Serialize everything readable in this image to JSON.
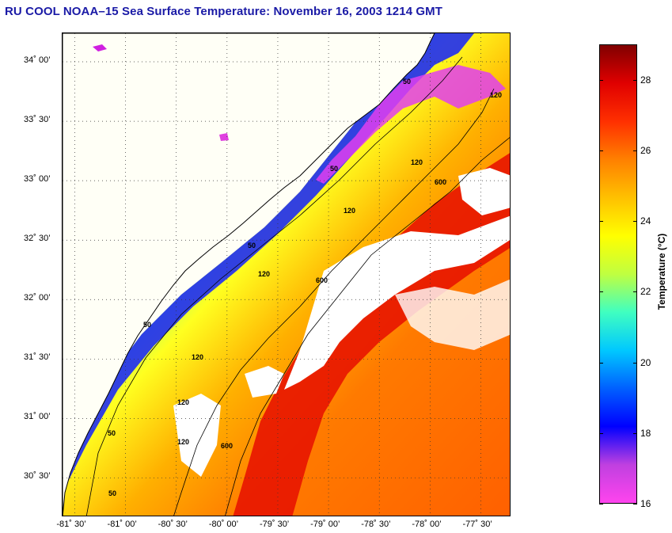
{
  "title": "RU COOL  NOAA–15  Sea Surface Temperature:  November 16, 2003 1214 GMT",
  "y_ticks": [
    {
      "label": "34˚ 00’",
      "lat": 34.0
    },
    {
      "label": "33˚ 30’",
      "lat": 33.5
    },
    {
      "label": "33˚ 00’",
      "lat": 33.0
    },
    {
      "label": "32˚ 30’",
      "lat": 32.5
    },
    {
      "label": "32˚ 00’",
      "lat": 32.0
    },
    {
      "label": "31˚ 30’",
      "lat": 31.5
    },
    {
      "label": "31˚ 00’",
      "lat": 31.0
    },
    {
      "label": "30˚ 30’",
      "lat": 30.5
    }
  ],
  "x_ticks": [
    {
      "label": "-81˚ 30’",
      "lon": -81.5
    },
    {
      "label": "-81˚ 00’",
      "lon": -81.0
    },
    {
      "label": "-80˚ 30’",
      "lon": -80.5
    },
    {
      "label": "-80˚ 00’",
      "lon": -80.0
    },
    {
      "label": "-79˚ 30’",
      "lon": -79.5
    },
    {
      "label": "-79˚ 00’",
      "lon": -79.0
    },
    {
      "label": "-78˚ 30’",
      "lon": -78.5
    },
    {
      "label": "-78˚ 00’",
      "lon": -78.0
    },
    {
      "label": "-77˚ 30’",
      "lon": -77.5
    }
  ],
  "colorbar": {
    "label": "Temperature (°C)",
    "range": [
      16,
      29
    ],
    "ticks": [
      "28",
      "26",
      "24",
      "22",
      "20",
      "18",
      "16"
    ],
    "tick_values": [
      28,
      26,
      24,
      22,
      20,
      18,
      16
    ],
    "colors": [
      "#ff44ee",
      "#c040e0",
      "#0000ff",
      "#0060ff",
      "#00c8ff",
      "#40ffc0",
      "#c0ff40",
      "#ffff00",
      "#ffc000",
      "#ff8000",
      "#ff3000",
      "#e00000",
      "#800000"
    ]
  },
  "contour_labels": [
    "50",
    "50",
    "50",
    "50",
    "50",
    "50",
    "120",
    "120",
    "120",
    "120",
    "120",
    "120",
    "120",
    "600",
    "600",
    "600"
  ],
  "map": {
    "lon_range": [
      -81.62,
      -77.2
    ],
    "lat_range": [
      30.17,
      34.24
    ],
    "cloud_color": "#ffffff",
    "land_color": "#fffff6"
  }
}
